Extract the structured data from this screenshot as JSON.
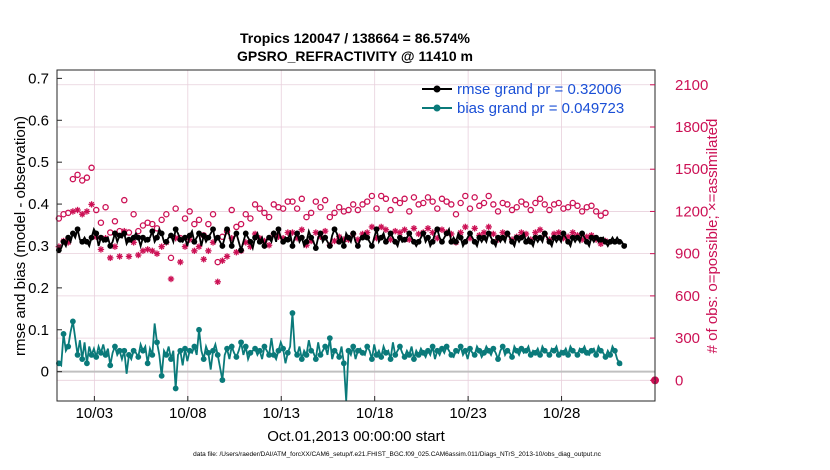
{
  "chart_data": {
    "type": "line",
    "title_line1": "Tropics 120047 / 138664 = 86.574%",
    "title_line2": "GPSRO_REFRACTIVITY @ 11410 m",
    "xlabel": "Oct.01,2013 00:00:00 start",
    "ylabel_left": "rmse and bias (model - observation)",
    "ylabel_right": "# of obs: o=possible; ×=assimilated",
    "footnote": "data file: /Users/raeder/DAI/ATM_forcXX/CAM6_setup/f.e21.FHIST_BGC.f09_025.CAM6assim.011/Diags_NTrS_2013-10/obs_diag_output.nc",
    "xlim": [
      1.0,
      33.0
    ],
    "ylim_left": [
      -0.07,
      0.72
    ],
    "ylim_right": [
      -147,
      2205
    ],
    "x_ticks": [
      3,
      8,
      13,
      18,
      23,
      28
    ],
    "x_tick_labels": [
      "10/03",
      "10/08",
      "10/13",
      "10/18",
      "10/23",
      "10/28"
    ],
    "y_left_ticks": [
      0,
      0.1,
      0.2,
      0.3,
      0.4,
      0.5,
      0.6,
      0.7
    ],
    "y_left_tick_labels": [
      "0",
      "0.1",
      "0.2",
      "0.3",
      "0.4",
      "0.5",
      "0.6",
      "0.7"
    ],
    "y_right_ticks": [
      0,
      300,
      600,
      900,
      1200,
      1500,
      1800,
      2100
    ],
    "y_right_tick_labels": [
      "0",
      "300",
      "600",
      "900",
      "1200",
      "1500",
      "1800",
      "2100"
    ],
    "legend": {
      "location": "top-right",
      "entries": [
        "rmse grand pr = 0.32006",
        "bias grand pr = 0.049723"
      ]
    },
    "colors": {
      "rmse": "#000000",
      "bias": "#0a7a7a",
      "obs": "#cc1155",
      "zero": "#c0c0c0",
      "legend_text": "#1a4fd6"
    },
    "x_start": 1.1,
    "x_step": 0.125,
    "series": [
      {
        "name": "rmse",
        "axis": "left",
        "values": [
          0.29,
          0.295,
          0.31,
          0.3,
          0.32,
          0.31,
          0.33,
          0.32,
          0.34,
          0.315,
          0.31,
          0.32,
          0.31,
          0.3,
          0.32,
          0.34,
          0.33,
          0.3,
          0.32,
          0.31,
          0.315,
          0.32,
          0.3,
          0.31,
          0.33,
          0.31,
          0.325,
          0.32,
          0.33,
          0.305,
          0.315,
          0.31,
          0.32,
          0.33,
          0.32,
          0.3,
          0.32,
          0.31,
          0.315,
          0.32,
          0.335,
          0.31,
          0.32,
          0.34,
          0.33,
          0.31,
          0.31,
          0.32,
          0.325,
          0.31,
          0.34,
          0.33,
          0.315,
          0.31,
          0.32,
          0.3,
          0.325,
          0.335,
          0.31,
          0.32,
          0.33,
          0.3,
          0.325,
          0.31,
          0.32,
          0.33,
          0.34,
          0.31,
          0.32,
          0.31,
          0.3,
          0.32,
          0.34,
          0.325,
          0.3,
          0.32,
          0.33,
          0.31,
          0.29,
          0.31,
          0.33,
          0.32,
          0.31,
          0.295,
          0.32,
          0.33,
          0.31,
          0.32,
          0.3,
          0.315,
          0.32,
          0.31,
          0.33,
          0.31,
          0.34,
          0.32,
          0.31,
          0.32,
          0.315,
          0.33,
          0.3,
          0.32,
          0.33,
          0.31,
          0.32,
          0.3,
          0.31,
          0.335,
          0.32,
          0.31,
          0.295,
          0.32,
          0.33,
          0.31,
          0.32,
          0.31,
          0.3,
          0.325,
          0.34,
          0.33,
          0.31,
          0.32,
          0.3,
          0.33,
          0.32,
          0.31,
          0.33,
          0.31,
          0.3,
          0.315,
          0.32,
          0.33,
          0.32,
          0.31,
          0.3,
          0.32,
          0.34,
          0.31,
          0.32,
          0.33,
          0.31,
          0.32,
          0.33,
          0.32,
          0.31,
          0.3,
          0.32,
          0.31,
          0.315,
          0.32,
          0.33,
          0.32,
          0.31,
          0.3,
          0.31,
          0.32,
          0.33,
          0.31,
          0.32,
          0.3,
          0.31,
          0.33,
          0.34,
          0.32,
          0.31,
          0.32,
          0.33,
          0.34,
          0.31,
          0.32,
          0.31,
          0.33,
          0.32,
          0.3,
          0.31,
          0.32,
          0.33,
          0.32,
          0.31,
          0.3,
          0.32,
          0.31,
          0.32,
          0.31,
          0.33,
          0.32,
          0.31,
          0.3,
          0.32,
          0.31,
          0.32,
          0.31,
          0.33,
          0.32,
          0.31,
          0.3,
          0.32,
          0.31,
          0.32,
          0.33,
          0.31,
          0.32,
          0.31,
          0.3,
          0.32,
          0.31,
          0.32,
          0.31,
          0.33,
          0.32,
          0.31,
          0.3,
          0.32,
          0.31,
          0.32,
          0.31,
          0.33,
          0.32,
          0.31,
          0.3,
          0.32,
          0.31,
          0.32,
          0.31,
          0.33,
          0.32,
          0.31,
          0.3,
          0.32,
          0.31,
          0.32,
          0.31,
          0.315,
          0.32,
          0.31,
          0.3,
          0.31,
          0.32,
          0.31,
          0.32,
          0.31,
          0.31,
          0.3,
          0.305
        ]
      },
      {
        "name": "bias",
        "axis": "left",
        "values": [
          0.02,
          0.015,
          0.09,
          0.05,
          0.06,
          0.095,
          0.12,
          0.08,
          0.04,
          0.075,
          0.03,
          0.07,
          0.02,
          0.06,
          0.04,
          0.055,
          0.035,
          0.06,
          0.045,
          0.065,
          0.04,
          0.055,
          0.015,
          0.045,
          0.06,
          0.04,
          0.05,
          0.03,
          0.05,
          -0.005,
          0.04,
          0.03,
          0.05,
          0.045,
          0.035,
          0.065,
          0.05,
          0.06,
          0.02,
          0.055,
          0.04,
          0.115,
          0.07,
          0.04,
          -0.01,
          0.05,
          0.04,
          0.06,
          0.03,
          0.05,
          -0.04,
          0.04,
          0.05,
          0.015,
          0.055,
          0.025,
          0.05,
          0.045,
          0.06,
          0.04,
          0.1,
          0.05,
          0.03,
          0.06,
          0.045,
          0.005,
          0.05,
          0.065,
          0.04,
          0.01,
          -0.02,
          0.04,
          0.055,
          0.03,
          0.06,
          0.045,
          0.035,
          0.05,
          0.07,
          0.04,
          0.06,
          0.03,
          0.045,
          0.05,
          0.055,
          0.04,
          0.05,
          0.03,
          0.06,
          0.05,
          0.04,
          0.08,
          0.04,
          0.03,
          0.05,
          0.07,
          0.055,
          0.02,
          0.045,
          0.06,
          0.14,
          0.05,
          0.04,
          0.06,
          0.03,
          0.05,
          0.04,
          0.075,
          0.05,
          0.045,
          0.03,
          0.07,
          0.04,
          0.05,
          0.06,
          0.04,
          0.08,
          0.03,
          0.05,
          0.045,
          0.035,
          0.06,
          0.02,
          -0.07,
          0.05,
          0.04,
          0.06,
          0.03,
          0.05,
          0.055,
          0.045,
          0.04,
          0.06,
          0.05,
          0.03,
          0.065,
          0.04,
          0.05,
          0.035,
          0.06,
          0.045,
          0.05,
          0.03,
          0.07,
          0.04,
          0.05,
          0.06,
          0.045,
          0.035,
          0.05,
          0.04,
          0.06,
          0.03,
          0.05,
          0.04,
          0.055,
          0.045,
          0.035,
          0.05,
          0.04,
          0.06,
          0.03,
          0.05,
          0.04,
          0.055,
          0.045,
          0.06,
          0.05,
          0.04,
          0.035,
          0.05,
          0.045,
          0.06,
          0.04,
          0.05,
          0.03,
          0.055,
          0.045,
          0.04,
          0.06,
          0.05,
          0.035,
          0.045,
          0.06,
          0.05,
          0.04,
          0.055,
          0.045,
          0.03,
          0.05,
          0.06,
          0.04,
          0.05,
          0.045,
          0.035,
          0.06,
          0.05,
          0.04,
          0.055,
          0.045,
          0.05,
          0.06,
          0.04,
          0.05,
          0.045,
          0.055,
          0.04,
          0.06,
          0.05,
          0.045,
          0.04,
          0.055,
          0.05,
          0.06,
          0.04,
          0.05,
          0.045,
          0.055,
          0.04,
          0.06,
          0.05,
          0.045,
          0.04,
          0.055,
          0.05,
          0.06,
          0.045,
          0.04,
          0.05,
          0.055,
          0.04,
          0.06,
          0.05,
          0.045,
          0.035,
          0.05,
          0.04,
          0.06,
          0.05,
          0.03,
          0.02,
          0.015
        ]
      },
      {
        "name": "possible (o)",
        "axis": "right",
        "marker": "circle",
        "values": [
          1150,
          1160,
          1180,
          1200,
          1190,
          1410,
          1430,
          1450,
          1460,
          1250,
          1420,
          1280,
          1440,
          1470,
          1510,
          1380,
          1210,
          1310,
          1120,
          1270,
          1230,
          1160,
          1050,
          1000,
          1130,
          1260,
          1060,
          1100,
          1280,
          1120,
          1050,
          1200,
          1180,
          1140,
          1060,
          1010,
          1100,
          990,
          1120,
          1070,
          1110,
          1020,
          1080,
          970,
          1140,
          1280,
          1180,
          1010,
          870,
          1130,
          1220,
          1060,
          1010,
          680,
          1150,
          1040,
          1200,
          980,
          1110,
          1020,
          1140,
          1180,
          1030,
          1040,
          1110,
          1070,
          1180,
          1160,
          840,
          1090,
          1020,
          1170,
          1060,
          1120,
          1210,
          1230,
          1090,
          1150,
          1110,
          1220,
          1180,
          1260,
          1150,
          1330,
          1250,
          1290,
          1220,
          1180,
          1190,
          1250,
          1160,
          1210,
          1250,
          1170,
          1230,
          1270,
          1220,
          1210,
          1270,
          1230,
          1270,
          1290,
          1220,
          1180,
          1290,
          1250,
          1160,
          1230,
          1190,
          1220,
          1270,
          1290,
          1230,
          1320,
          1280,
          1250,
          1160,
          1220,
          1190,
          1270,
          1230,
          1290,
          1200,
          1180,
          1210,
          1300,
          1250,
          1180,
          1210,
          1190,
          1250,
          1230,
          1270,
          1290,
          1310,
          1250,
          1220,
          1270,
          1310,
          1250,
          1290,
          1230,
          1210,
          1250,
          1280,
          1310,
          1260,
          1240,
          1290,
          1230,
          1200,
          1280,
          1300,
          1330,
          1250,
          1210,
          1260,
          1290,
          1300,
          1310,
          1270,
          1250,
          1220,
          1260,
          1290,
          1310,
          1270,
          1230,
          1250,
          1200,
          1180,
          1240,
          1260,
          1290,
          1310,
          1250,
          1220,
          1270,
          1300,
          1280,
          1240,
          1220,
          1260,
          1290,
          1310,
          1270,
          1250,
          1220,
          1200,
          1230,
          1260,
          1290,
          1250,
          1220,
          1210,
          1180,
          1230,
          1250,
          1270,
          1290,
          1250,
          1230,
          1210,
          1250,
          1260,
          1280,
          1290,
          1270,
          1250,
          1230,
          1210,
          1230,
          1250,
          1270,
          1260,
          1240,
          1220,
          1200,
          1230,
          1250,
          1260,
          1250,
          1240,
          1220,
          1200,
          1210,
          1230,
          1250,
          1240,
          1220,
          1200,
          1180,
          1170,
          1200,
          1190
        ]
      },
      {
        "name": "assimilated (x)",
        "axis": "right",
        "marker": "asterisk",
        "values": [
          950,
          960,
          990,
          1000,
          980,
          1180,
          1200,
          1220,
          1210,
          1050,
          1180,
          1030,
          1200,
          1210,
          1250,
          1140,
          1020,
          1100,
          930,
          1050,
          1010,
          950,
          870,
          850,
          950,
          1060,
          880,
          920,
          1060,
          940,
          880,
          1000,
          980,
          950,
          890,
          850,
          920,
          820,
          930,
          890,
          920,
          850,
          900,
          810,
          950,
          1060,
          980,
          840,
          720,
          940,
          1010,
          880,
          840,
          560,
          950,
          860,
          1000,
          820,
          920,
          850,
          950,
          980,
          860,
          860,
          920,
          890,
          980,
          970,
          700,
          910,
          850,
          970,
          880,
          930,
          1010,
          1020,
          910,
          950,
          920,
          1010,
          980,
          1050,
          950,
          1100,
          1040,
          1070,
          1010,
          980,
          990,
          1040,
          960,
          1000,
          1040,
          970,
          1020,
          1050,
          1010,
          1000,
          1050,
          1020,
          1050,
          1070,
          1010,
          980,
          1070,
          1040,
          960,
          1020,
          990,
          1010,
          1050,
          1070,
          1020,
          1100,
          1060,
          1040,
          960,
          1010,
          990,
          1050,
          1020,
          1070,
          1000,
          980,
          1000,
          1080,
          1040,
          980,
          1000,
          990,
          1040,
          1020,
          1050,
          1070,
          1090,
          1040,
          1010,
          1050,
          1090,
          1040,
          1070,
          1020,
          1000,
          1040,
          1060,
          1090,
          1050,
          1030,
          1070,
          1020,
          1000,
          1060,
          1080,
          1100,
          1040,
          1000,
          1050,
          1070,
          1080,
          1090,
          1050,
          1040,
          1010,
          1050,
          1070,
          1090,
          1050,
          1020,
          1040,
          1000,
          980,
          1030,
          1050,
          1070,
          1090,
          1040,
          1010,
          1050,
          1080,
          1060,
          1030,
          1010,
          1050,
          1070,
          1090,
          1050,
          1040,
          1010,
          1000,
          1020,
          1050,
          1070,
          1040,
          1010,
          1000,
          980,
          1020,
          1040,
          1050,
          1070,
          1040,
          1020,
          1000,
          1040,
          1050,
          1060,
          1070,
          1050,
          1040,
          1020,
          1000,
          1020,
          1040,
          1050,
          1050,
          1030,
          1010,
          1000,
          1020,
          1040,
          1050,
          1040,
          1030,
          1010,
          1000,
          1000,
          1020,
          1040,
          1030,
          1010,
          1000,
          980,
          970,
          1000,
          990
        ]
      }
    ]
  }
}
